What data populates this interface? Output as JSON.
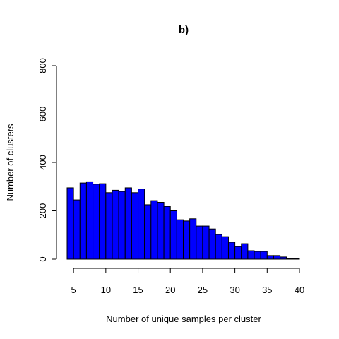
{
  "chart_data": {
    "type": "histogram",
    "title": "b)",
    "xlabel": "Number of unique samples per cluster",
    "ylabel": "Number of clusters",
    "bins": [
      4,
      5,
      6,
      7,
      8,
      9,
      10,
      11,
      12,
      13,
      14,
      15,
      16,
      17,
      18,
      19,
      20,
      21,
      22,
      23,
      24,
      25,
      26,
      27,
      28,
      29,
      30,
      31,
      32,
      33,
      34,
      35,
      36,
      37,
      38,
      39,
      40
    ],
    "values": [
      295,
      245,
      315,
      320,
      310,
      312,
      275,
      285,
      280,
      295,
      275,
      290,
      225,
      242,
      235,
      218,
      200,
      163,
      158,
      167,
      137,
      137,
      125,
      102,
      93,
      70,
      52,
      64,
      35,
      32,
      32,
      15,
      15,
      9,
      3,
      3
    ],
    "color": "#0000ff",
    "xlim": [
      4,
      40
    ],
    "xticks": [
      5,
      10,
      15,
      20,
      25,
      30,
      35,
      40
    ],
    "ylim": [
      0,
      800
    ],
    "yticks": [
      0,
      200,
      400,
      600,
      800
    ],
    "grid": false
  }
}
